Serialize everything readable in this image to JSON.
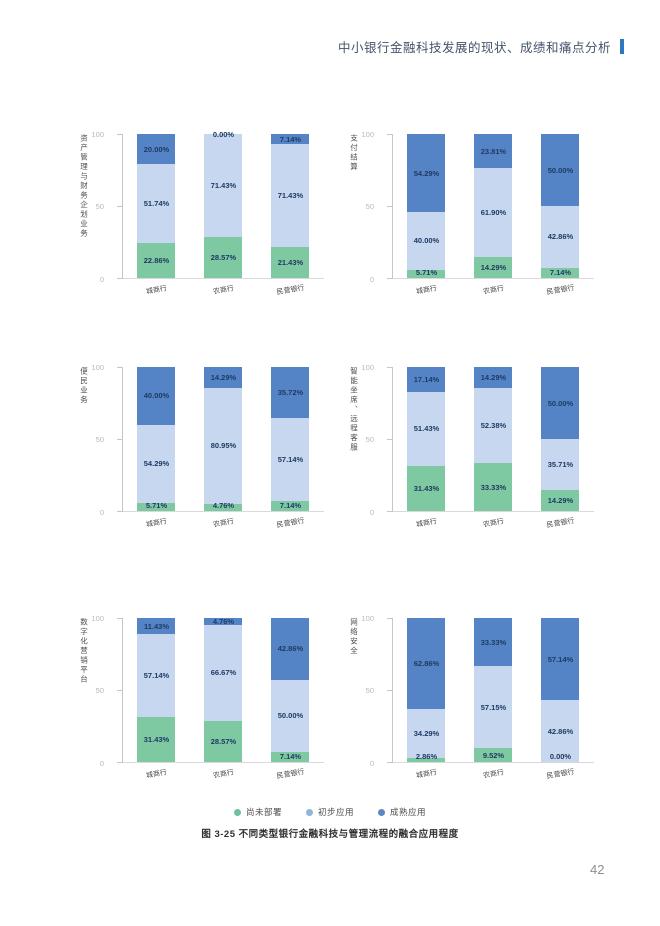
{
  "header": {
    "title": "中小银行金融科技发展的现状、成绩和痛点分析",
    "accent_color": "#2e79bd"
  },
  "page_number": "42",
  "caption": "图 3-25 不同类型银行金融科技与管理流程的融合应用程度",
  "legend": {
    "items": [
      {
        "label": "尚未部署",
        "color": "#6fc09d"
      },
      {
        "label": "初步应用",
        "color": "#8fb3d9"
      },
      {
        "label": "成熟应用",
        "color": "#5b87c2"
      }
    ]
  },
  "series_colors": [
    "#7fc9a2",
    "#c6d7ef",
    "#5584c6"
  ],
  "chart_data": [
    {
      "type": "bar",
      "stacked": true,
      "title": "",
      "ylabel": "资产管理与财务企划业务",
      "categories": [
        "城商行",
        "农商行",
        "民营银行"
      ],
      "series": [
        {
          "name": "尚未部署",
          "values": [
            22.86,
            28.57,
            21.43
          ]
        },
        {
          "name": "初步应用",
          "values": [
            51.74,
            71.43,
            71.43
          ]
        },
        {
          "name": "成熟应用",
          "values": [
            20.0,
            0.0,
            7.14
          ]
        }
      ],
      "ylim": [
        0,
        100
      ],
      "yticks": [
        0,
        50,
        100
      ],
      "grid": false,
      "legend_position": "shared-bottom"
    },
    {
      "type": "bar",
      "stacked": true,
      "title": "",
      "ylabel": "支付结算",
      "categories": [
        "城商行",
        "农商行",
        "民营银行"
      ],
      "series": [
        {
          "name": "尚未部署",
          "values": [
            5.71,
            14.29,
            7.14
          ]
        },
        {
          "name": "初步应用",
          "values": [
            40.0,
            61.9,
            42.86
          ]
        },
        {
          "name": "成熟应用",
          "values": [
            54.29,
            23.81,
            50.0
          ]
        }
      ],
      "ylim": [
        0,
        100
      ],
      "yticks": [
        0,
        50,
        100
      ],
      "grid": false,
      "legend_position": "shared-bottom"
    },
    {
      "type": "bar",
      "stacked": true,
      "title": "",
      "ylabel": "便民业务",
      "categories": [
        "城商行",
        "农商行",
        "民营银行"
      ],
      "series": [
        {
          "name": "尚未部署",
          "values": [
            5.71,
            4.76,
            7.14
          ]
        },
        {
          "name": "初步应用",
          "values": [
            54.29,
            80.95,
            57.14
          ]
        },
        {
          "name": "成熟应用",
          "values": [
            40.0,
            14.29,
            35.72
          ]
        }
      ],
      "ylim": [
        0,
        100
      ],
      "yticks": [
        0,
        50,
        100
      ],
      "grid": false,
      "legend_position": "shared-bottom"
    },
    {
      "type": "bar",
      "stacked": true,
      "title": "",
      "ylabel": "智能坐席、远程客服",
      "categories": [
        "城商行",
        "农商行",
        "民营银行"
      ],
      "series": [
        {
          "name": "尚未部署",
          "values": [
            31.43,
            33.33,
            14.29
          ]
        },
        {
          "name": "初步应用",
          "values": [
            51.43,
            52.38,
            35.71
          ]
        },
        {
          "name": "成熟应用",
          "values": [
            17.14,
            14.29,
            50.0
          ]
        }
      ],
      "ylim": [
        0,
        100
      ],
      "yticks": [
        0,
        50,
        100
      ],
      "grid": false,
      "legend_position": "shared-bottom"
    },
    {
      "type": "bar",
      "stacked": true,
      "title": "",
      "ylabel": "数字化营销平台",
      "categories": [
        "城商行",
        "农商行",
        "民营银行"
      ],
      "series": [
        {
          "name": "尚未部署",
          "values": [
            31.43,
            28.57,
            7.14
          ]
        },
        {
          "name": "初步应用",
          "values": [
            57.14,
            66.67,
            50.0
          ]
        },
        {
          "name": "成熟应用",
          "values": [
            11.43,
            4.76,
            42.86
          ]
        }
      ],
      "ylim": [
        0,
        100
      ],
      "yticks": [
        0,
        50,
        100
      ],
      "grid": false,
      "legend_position": "shared-bottom"
    },
    {
      "type": "bar",
      "stacked": true,
      "title": "",
      "ylabel": "网络安全",
      "categories": [
        "城商行",
        "农商行",
        "民营银行"
      ],
      "series": [
        {
          "name": "尚未部署",
          "values": [
            2.86,
            9.52,
            0.0
          ]
        },
        {
          "name": "初步应用",
          "values": [
            34.29,
            57.15,
            42.86
          ]
        },
        {
          "name": "成熟应用",
          "values": [
            62.86,
            33.33,
            57.14
          ]
        }
      ],
      "ylim": [
        0,
        100
      ],
      "yticks": [
        0,
        50,
        100
      ],
      "grid": false,
      "legend_position": "shared-bottom"
    }
  ]
}
